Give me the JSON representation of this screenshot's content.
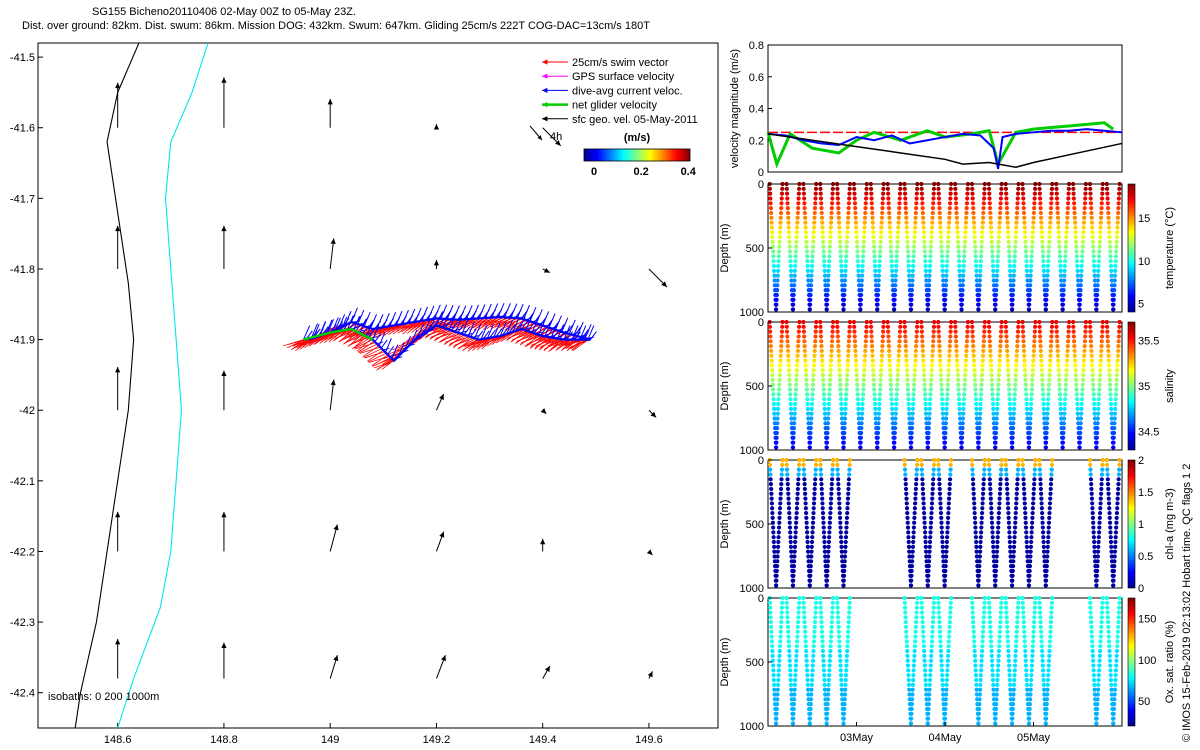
{
  "title_line1": "SG155 Bicheno20110406 02-May 00Z to 05-May 23Z.",
  "title_line2": "Dist. over ground: 82km. Dist. swum: 86km. Mission DOG: 432km. Swum: 647km. Gliding 25cm/s 222T COG-DAC=13cm/s 180T",
  "side_note": "© IMOS 15-Feb-2019 02:13:02 Hobart time. QC flags 1  2",
  "chart_data": [
    {
      "type": "scatter",
      "id": "map",
      "title": "",
      "xlabel": "",
      "ylabel": "",
      "xlim": [
        148.45,
        149.73
      ],
      "ylim": [
        -42.45,
        -41.48
      ],
      "x_ticks": [
        "148.6",
        "148.8",
        "149",
        "149.2",
        "149.4",
        "149.6"
      ],
      "x_tick_values": [
        148.6,
        148.8,
        149.0,
        149.2,
        149.4,
        149.6
      ],
      "y_ticks": [
        "-41.5",
        "-41.6",
        "-41.7",
        "-41.8",
        "-41.9",
        "-42",
        "-42.1",
        "-42.2",
        "-42.3",
        "-42.4"
      ],
      "y_tick_values": [
        -41.5,
        -41.6,
        -41.7,
        -41.8,
        -41.9,
        -42.0,
        -42.1,
        -42.2,
        -42.3,
        -42.4
      ],
      "legend": {
        "placement": "top-right",
        "entries": [
          {
            "label": "25cm/s swim vector",
            "color": "#ff0000"
          },
          {
            "label": "GPS surface velocity",
            "color": "#ff00ff"
          },
          {
            "label": "dive-avg current veloc.",
            "color": "#0000ff"
          },
          {
            "label": "net glider velocity",
            "color": "#00cc00"
          },
          {
            "label": "sfc geo. vel. 05-May-2011",
            "color": "#000000"
          }
        ],
        "scale_arrow_label": "4h"
      },
      "colorbar": {
        "label": "(m/s)",
        "ticks": [
          "0",
          "0.2",
          "0.4"
        ],
        "tick_values": [
          0,
          0.2,
          0.4
        ],
        "range": [
          0,
          0.45
        ]
      },
      "isobaths": {
        "label": "isobaths: 0    200  1000m",
        "lines": [
          {
            "name": "1000m",
            "color": "#000000",
            "points": [
              [
                148.64,
                -41.48
              ],
              [
                148.6,
                -41.55
              ],
              [
                148.58,
                -41.62
              ],
              [
                148.6,
                -41.72
              ],
              [
                148.62,
                -41.82
              ],
              [
                148.63,
                -41.9
              ],
              [
                148.62,
                -42.0
              ],
              [
                148.6,
                -42.1
              ],
              [
                148.58,
                -42.2
              ],
              [
                148.56,
                -42.3
              ],
              [
                148.53,
                -42.4
              ],
              [
                148.52,
                -42.45
              ]
            ]
          },
          {
            "name": "200m",
            "color": "#00e5ee",
            "points": [
              [
                148.77,
                -41.48
              ],
              [
                148.74,
                -41.55
              ],
              [
                148.7,
                -41.62
              ],
              [
                148.69,
                -41.7
              ],
              [
                148.7,
                -41.8
              ],
              [
                148.71,
                -41.9
              ],
              [
                148.72,
                -42.0
              ],
              [
                148.71,
                -42.1
              ],
              [
                148.7,
                -42.2
              ],
              [
                148.68,
                -42.28
              ],
              [
                148.63,
                -42.38
              ],
              [
                148.6,
                -42.45
              ]
            ]
          }
        ]
      },
      "geo_vectors": [
        {
          "lon": 148.6,
          "lat": -41.6,
          "u": 0.0,
          "v": 0.25
        },
        {
          "lon": 148.8,
          "lat": -41.6,
          "u": 0.0,
          "v": 0.28
        },
        {
          "lon": 149.0,
          "lat": -41.6,
          "u": 0.0,
          "v": 0.16
        },
        {
          "lon": 149.2,
          "lat": -41.6,
          "u": 0.0,
          "v": 0.02
        },
        {
          "lon": 149.4,
          "lat": -41.6,
          "u": 0.1,
          "v": -0.1
        },
        {
          "lon": 148.6,
          "lat": -41.8,
          "u": 0.0,
          "v": 0.24
        },
        {
          "lon": 148.8,
          "lat": -41.8,
          "u": 0.0,
          "v": 0.24
        },
        {
          "lon": 149.0,
          "lat": -41.8,
          "u": 0.02,
          "v": 0.17
        },
        {
          "lon": 149.2,
          "lat": -41.8,
          "u": 0.0,
          "v": 0.05
        },
        {
          "lon": 149.4,
          "lat": -41.8,
          "u": 0.04,
          "v": -0.02
        },
        {
          "lon": 149.6,
          "lat": -41.8,
          "u": 0.1,
          "v": -0.1
        },
        {
          "lon": 148.6,
          "lat": -42.0,
          "u": 0.0,
          "v": 0.24
        },
        {
          "lon": 148.8,
          "lat": -42.0,
          "u": 0.0,
          "v": 0.22
        },
        {
          "lon": 149.0,
          "lat": -42.0,
          "u": 0.02,
          "v": 0.17
        },
        {
          "lon": 149.2,
          "lat": -42.0,
          "u": 0.04,
          "v": 0.09
        },
        {
          "lon": 149.4,
          "lat": -42.0,
          "u": 0.02,
          "v": -0.02
        },
        {
          "lon": 149.6,
          "lat": -42.0,
          "u": 0.04,
          "v": -0.04
        },
        {
          "lon": 148.6,
          "lat": -42.2,
          "u": 0.0,
          "v": 0.22
        },
        {
          "lon": 148.8,
          "lat": -42.2,
          "u": 0.0,
          "v": 0.22
        },
        {
          "lon": 149.0,
          "lat": -42.2,
          "u": 0.04,
          "v": 0.15
        },
        {
          "lon": 149.2,
          "lat": -42.2,
          "u": 0.04,
          "v": 0.11
        },
        {
          "lon": 149.4,
          "lat": -42.2,
          "u": 0.0,
          "v": 0.07
        },
        {
          "lon": 149.6,
          "lat": -42.2,
          "u": 0.02,
          "v": -0.02
        },
        {
          "lon": 148.6,
          "lat": -42.38,
          "u": 0.0,
          "v": 0.22
        },
        {
          "lon": 148.8,
          "lat": -42.38,
          "u": 0.0,
          "v": 0.2
        },
        {
          "lon": 149.0,
          "lat": -42.38,
          "u": 0.04,
          "v": 0.13
        },
        {
          "lon": 149.2,
          "lat": -42.38,
          "u": 0.05,
          "v": 0.13
        },
        {
          "lon": 149.4,
          "lat": -42.38,
          "u": 0.04,
          "v": 0.07
        },
        {
          "lon": 149.6,
          "lat": -42.38,
          "u": 0.02,
          "v": 0.04
        }
      ],
      "glider_track": [
        [
          148.95,
          -41.9
        ],
        [
          149.0,
          -41.89
        ],
        [
          149.04,
          -41.885
        ],
        [
          149.08,
          -41.9
        ],
        [
          149.12,
          -41.93
        ],
        [
          149.16,
          -41.9
        ],
        [
          149.2,
          -41.88
        ],
        [
          149.24,
          -41.89
        ],
        [
          149.28,
          -41.9
        ],
        [
          149.32,
          -41.895
        ],
        [
          149.36,
          -41.885
        ],
        [
          149.4,
          -41.895
        ],
        [
          149.44,
          -41.9
        ],
        [
          149.49,
          -41.9
        ],
        [
          149.44,
          -41.89
        ],
        [
          149.4,
          -41.88
        ],
        [
          149.36,
          -41.87
        ],
        [
          149.32,
          -41.868
        ],
        [
          149.28,
          -41.87
        ],
        [
          149.24,
          -41.872
        ],
        [
          149.2,
          -41.87
        ],
        [
          149.16,
          -41.875
        ],
        [
          149.12,
          -41.88
        ],
        [
          149.08,
          -41.885
        ],
        [
          149.04,
          -41.875
        ],
        [
          149.0,
          -41.89
        ],
        [
          148.96,
          -41.9
        ]
      ]
    },
    {
      "type": "line",
      "id": "velocity",
      "title": "",
      "xlabel": "",
      "ylabel": "velocity magnitude (m/s)",
      "xlim": [
        0,
        4
      ],
      "ylim": [
        0,
        0.8
      ],
      "y_ticks": [
        "0",
        "0.2",
        "0.4",
        "0.6",
        "0.8"
      ],
      "y_tick_values": [
        0,
        0.2,
        0.4,
        0.6,
        0.8
      ],
      "series": [
        {
          "name": "25cm/s swim vector",
          "color": "#ff0000",
          "x": [
            0,
            4
          ],
          "y": [
            0.25,
            0.25
          ]
        },
        {
          "name": "net glider velocity",
          "color": "#00cc00",
          "x": [
            0,
            0.1,
            0.25,
            0.5,
            0.8,
            1.0,
            1.2,
            1.5,
            1.8,
            2.0,
            2.3,
            2.5,
            2.6,
            2.8,
            3.0,
            3.2,
            3.4,
            3.6,
            3.8,
            3.9
          ],
          "y": [
            0.25,
            0.05,
            0.24,
            0.15,
            0.12,
            0.2,
            0.25,
            0.2,
            0.26,
            0.22,
            0.24,
            0.26,
            0.05,
            0.25,
            0.27,
            0.28,
            0.29,
            0.3,
            0.31,
            0.27
          ]
        },
        {
          "name": "dive-avg current veloc.",
          "color": "#0000ff",
          "x": [
            0,
            0.2,
            0.4,
            0.6,
            0.8,
            1.0,
            1.2,
            1.4,
            1.6,
            1.8,
            2.0,
            2.2,
            2.4,
            2.55,
            2.6,
            2.65,
            2.8,
            3.0,
            3.2,
            3.4,
            3.6,
            3.8,
            4.0
          ],
          "y": [
            0.24,
            0.23,
            0.2,
            0.18,
            0.17,
            0.22,
            0.2,
            0.23,
            0.18,
            0.2,
            0.22,
            0.24,
            0.23,
            0.15,
            0.02,
            0.22,
            0.24,
            0.25,
            0.26,
            0.26,
            0.27,
            0.26,
            0.25
          ]
        },
        {
          "name": "sfc geo. vel. 05-May-2011",
          "color": "#000000",
          "x": [
            0,
            0.5,
            1.0,
            1.5,
            2.0,
            2.2,
            2.5,
            2.8,
            3.0,
            3.5,
            4.0
          ],
          "y": [
            0.24,
            0.2,
            0.16,
            0.12,
            0.08,
            0.05,
            0.06,
            0.03,
            0.06,
            0.12,
            0.18
          ]
        }
      ]
    },
    {
      "type": "scatter",
      "id": "temperature",
      "ylabel": "Depth (m)",
      "cbar_label": "temperature (°C)",
      "y_ticks": [
        "0",
        "500",
        "1000"
      ],
      "y_tick_values": [
        0,
        500,
        1000
      ],
      "ylim": [
        0,
        1000
      ],
      "cbar_ticks": [
        "5",
        "10",
        "15"
      ],
      "cbar_tick_values": [
        5,
        10,
        15
      ],
      "cbar_range": [
        4,
        19
      ],
      "profiles": 21,
      "gaps": []
    },
    {
      "type": "scatter",
      "id": "salinity",
      "ylabel": "Depth (m)",
      "cbar_label": "salinity",
      "y_ticks": [
        "0",
        "500",
        "1000"
      ],
      "y_tick_values": [
        0,
        500,
        1000
      ],
      "ylim": [
        0,
        1000
      ],
      "cbar_ticks": [
        "34.5",
        "35",
        "35.5"
      ],
      "cbar_tick_values": [
        34.5,
        35,
        35.5
      ],
      "cbar_range": [
        34.3,
        35.7
      ],
      "profiles": 21,
      "gaps": []
    },
    {
      "type": "scatter",
      "id": "chla",
      "ylabel": "Depth (m)",
      "cbar_label": "chl-a (mg m-3)",
      "y_ticks": [
        "0",
        "500",
        "1000"
      ],
      "y_tick_values": [
        0,
        500,
        1000
      ],
      "ylim": [
        0,
        1000
      ],
      "cbar_ticks": [
        "0",
        "0.5",
        "1",
        "1.5",
        "2"
      ],
      "cbar_tick_values": [
        0,
        0.5,
        1,
        1.5,
        2
      ],
      "cbar_range": [
        0,
        2
      ],
      "profiles": 21,
      "gaps": [
        [
          0.95,
          1.48
        ],
        [
          2.02,
          2.35
        ],
        [
          3.22,
          3.55
        ]
      ]
    },
    {
      "type": "scatter",
      "id": "oxygen",
      "ylabel": "Depth (m)",
      "cbar_label": "Ox. sat. ratio (%)",
      "y_ticks": [
        "0",
        "500",
        "1000"
      ],
      "y_tick_values": [
        0,
        500,
        1000
      ],
      "ylim": [
        0,
        1000
      ],
      "cbar_ticks": [
        "50",
        "100",
        "150"
      ],
      "cbar_tick_values": [
        50,
        100,
        150
      ],
      "cbar_range": [
        20,
        175
      ],
      "x_ticks": [
        "03May",
        "04May",
        "05May"
      ],
      "x_tick_values": [
        1,
        2,
        3
      ],
      "profiles": 21,
      "gaps": [
        [
          0.95,
          1.48
        ],
        [
          2.02,
          2.35
        ],
        [
          3.22,
          3.55
        ]
      ]
    }
  ]
}
